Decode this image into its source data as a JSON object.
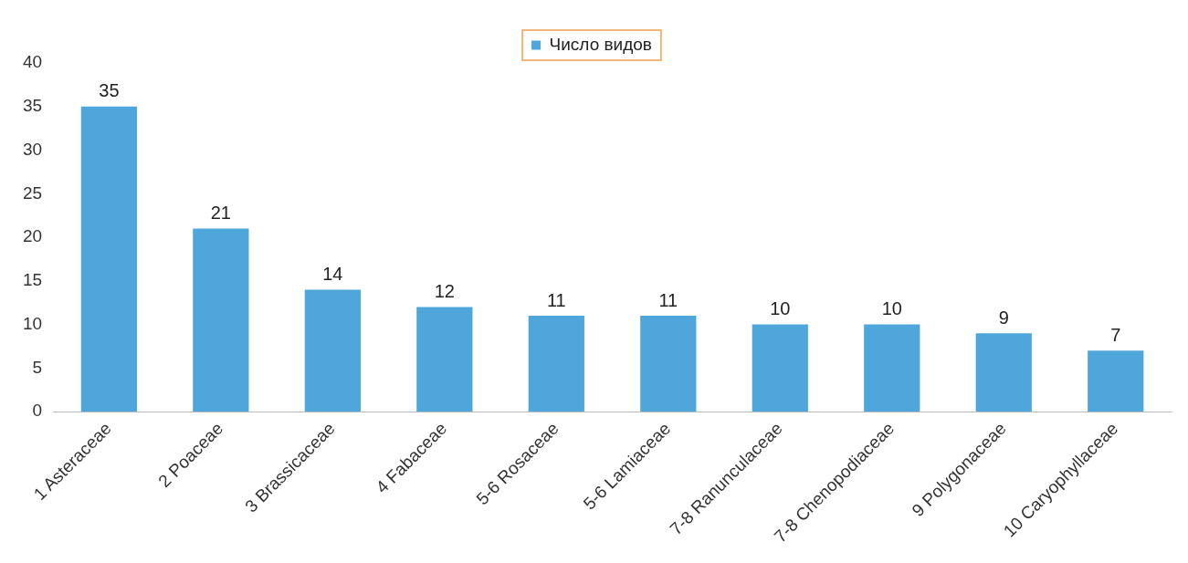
{
  "chart_data": {
    "type": "bar",
    "categories": [
      "1 Asteraceae",
      "2 Poaceae",
      "3 Brassicaceae",
      "4 Fabaceae",
      "5-6 Rosaceae",
      "5-6 Lamiaceae",
      "7-8 Ranunculaceae",
      "7-8 Chenopodiaceae",
      "9 Polygonaceae",
      "10 Caryophyllaceae"
    ],
    "series": [
      {
        "name": "Число видов",
        "color": "#4fa6da",
        "values": [
          35,
          21,
          14,
          12,
          11,
          11,
          10,
          10,
          9,
          7
        ]
      }
    ],
    "ylim": [
      0,
      40
    ],
    "yticks": [
      0,
      5,
      10,
      15,
      20,
      25,
      30,
      35,
      40
    ],
    "data_labels": true,
    "grid": false,
    "legend": "top"
  }
}
